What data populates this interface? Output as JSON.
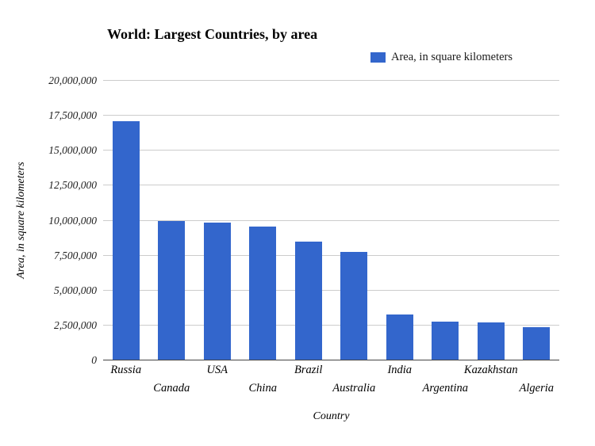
{
  "legend": {
    "label": "Area, in square kilometers",
    "color": "#3366cc"
  },
  "chart_data": {
    "type": "bar",
    "title": "World: Largest Countries, by area",
    "xlabel": "Country",
    "ylabel": "Area, in square kilometers",
    "categories": [
      "Russia",
      "Canada",
      "USA",
      "China",
      "Brazil",
      "Australia",
      "India",
      "Argentina",
      "Kazakhstan",
      "Algeria"
    ],
    "values": [
      17098242,
      9984670,
      9833517,
      9596960,
      8515767,
      7741220,
      3287263,
      2780400,
      2724900,
      2381741
    ],
    "ylim": [
      0,
      20000000
    ],
    "ytick_step": 2500000,
    "yticks": [
      "0",
      "2,500,000",
      "5,000,000",
      "7,500,000",
      "10,000,000",
      "12,500,000",
      "15,000,000",
      "17,500,000",
      "20,000,000"
    ],
    "bar_color": "#3366cc",
    "grid": true,
    "legend_position": "top-right"
  }
}
